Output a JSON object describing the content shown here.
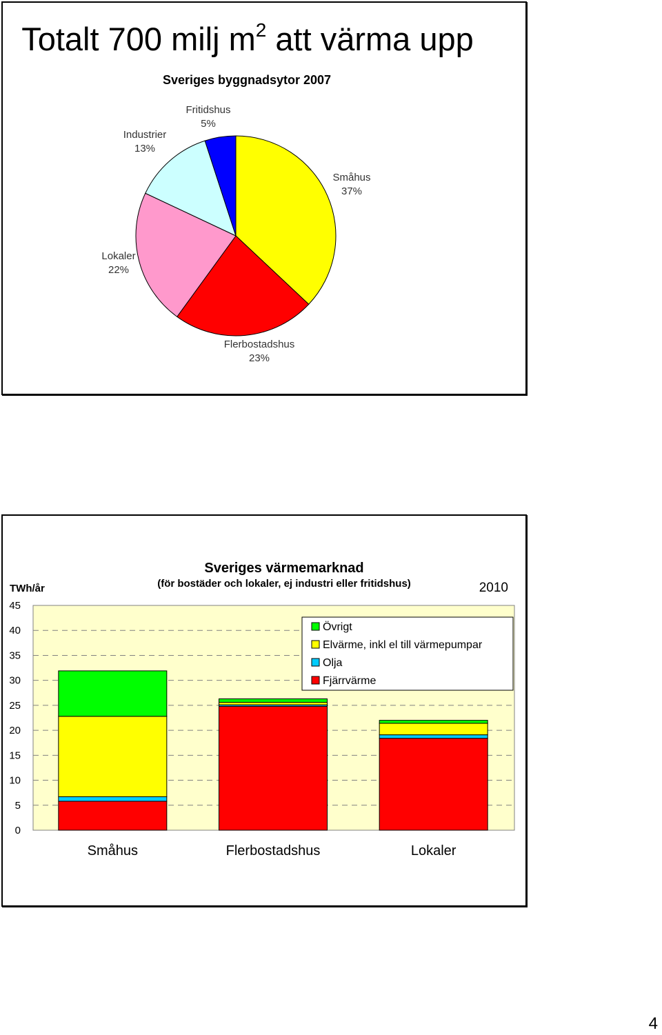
{
  "page": {
    "number": "4"
  },
  "slide1": {
    "title_main": "Totalt 700 milj m",
    "title_sup": "2",
    "title_rest": " att värma upp"
  },
  "chart_data": [
    {
      "type": "pie",
      "title": "Sveriges byggnadsytor 2007",
      "slices": [
        {
          "label": "Småhus",
          "value": 37,
          "value_label": "37%",
          "color": "#FFFF00"
        },
        {
          "label": "Flerbostadshus",
          "value": 23,
          "value_label": "23%",
          "color": "#FF0000"
        },
        {
          "label": "Lokaler",
          "value": 22,
          "value_label": "22%",
          "color": "#FF99CC"
        },
        {
          "label": "Industrier",
          "value": 13,
          "value_label": "13%",
          "color": "#CCFFFF"
        },
        {
          "label": "Fritidshus",
          "value": 5,
          "value_label": "5%",
          "color": "#0000FF"
        }
      ],
      "start": "12 o'clock, clockwise"
    },
    {
      "type": "bar",
      "stacked": true,
      "title": "Sveriges värmemarknad",
      "subtitle": "(för bostäder och lokaler, ej industri eller fritidshus)",
      "year_label": "2010",
      "ylabel": "TWh/år",
      "ylim": [
        0,
        45
      ],
      "yticks": [
        "0",
        "5",
        "10",
        "15",
        "20",
        "25",
        "30",
        "35",
        "40",
        "45"
      ],
      "grid": "dashed horizontal",
      "legend_position": "top-right",
      "plot_background": "#FFFFCC",
      "categories": [
        "Småhus",
        "Flerbostadshus",
        "Lokaler"
      ],
      "series": [
        {
          "name": "Fjärrvärme",
          "color": "#FF0000",
          "values": [
            5.8,
            24.8,
            18.4
          ]
        },
        {
          "name": "Olja",
          "color": "#00CCFF",
          "values": [
            0.9,
            0.3,
            0.7
          ]
        },
        {
          "name": "Elvärme, inkl el till värmepumpar",
          "color": "#FFFF00",
          "values": [
            16.1,
            0.5,
            2.3
          ]
        },
        {
          "name": "Övrigt",
          "color": "#00FF00",
          "values": [
            9.1,
            0.7,
            0.6
          ]
        }
      ],
      "legend_order": [
        "Övrigt",
        "Elvärme, inkl el till värmepumpar",
        "Olja",
        "Fjärrvärme"
      ]
    }
  ]
}
